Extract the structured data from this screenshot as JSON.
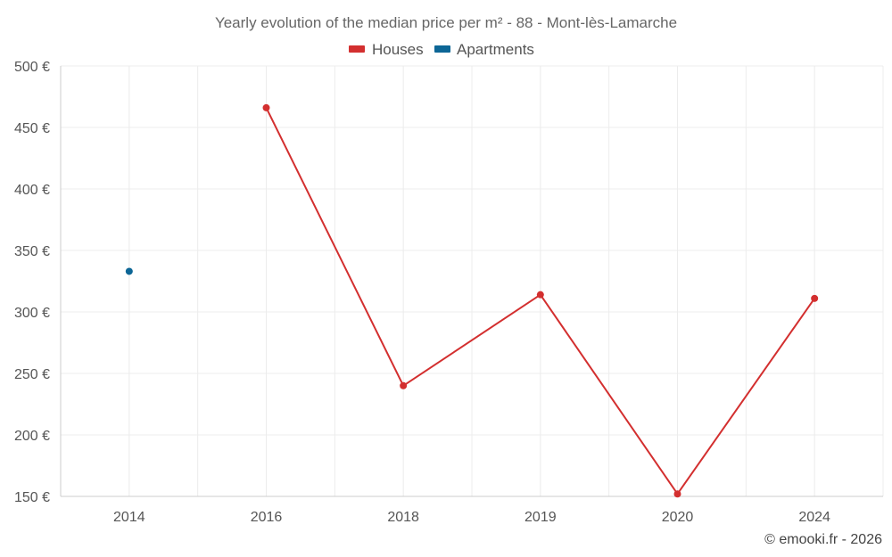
{
  "chart_data": {
    "type": "line",
    "title": "Yearly evolution of the median price per m² - 88 - Mont-lès-Lamarche",
    "categories": [
      "2014",
      "2016",
      "2018",
      "2019",
      "2020",
      "2024"
    ],
    "series": [
      {
        "name": "Houses",
        "color": "#d32f2f",
        "values": [
          null,
          466,
          240,
          314,
          152,
          311
        ]
      },
      {
        "name": "Apartments",
        "color": "#0d6696",
        "values": [
          333,
          null,
          null,
          null,
          null,
          null
        ]
      }
    ],
    "y_ticks": [
      "150 €",
      "200 €",
      "250 €",
      "300 €",
      "350 €",
      "400 €",
      "450 €",
      "500 €"
    ],
    "ylim": [
      150,
      500
    ],
    "xlabel": "",
    "ylabel": "",
    "legend_position": "top-center",
    "grid": true
  },
  "credit": "© emooki.fr - 2026"
}
